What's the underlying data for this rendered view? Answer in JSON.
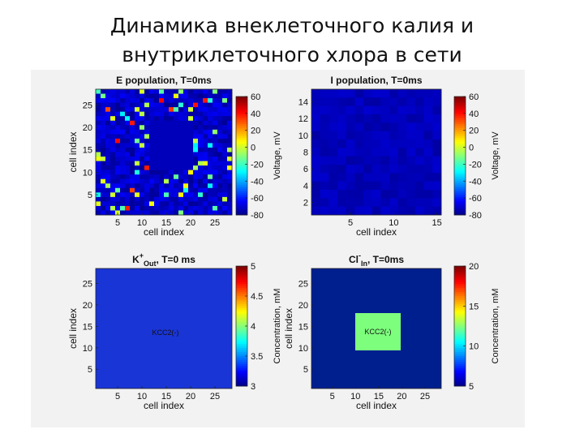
{
  "slide": {
    "title_line1": "Динамика внеклеточного калия и",
    "title_line2": "внутриклеточного хлора в сети"
  },
  "chart_data": [
    {
      "type": "heatmap",
      "title": "E population, T=0ms",
      "xlabel": "cell index",
      "ylabel": "cell index",
      "xticks": [
        5,
        10,
        15,
        20,
        25
      ],
      "yticks": [
        5,
        10,
        15,
        20,
        25
      ],
      "grid_size": [
        28,
        28
      ],
      "colorbar": {
        "label": "Voltage, mV",
        "range": [
          -80,
          60
        ],
        "ticks": [
          60,
          40,
          20,
          0,
          -20,
          -40,
          -60,
          -80
        ]
      },
      "background_value": -70,
      "colors": {
        "background": "#1f2fd0"
      }
    },
    {
      "type": "heatmap",
      "title": "I population, T=0ms",
      "xlabel": "cell index",
      "ylabel": "",
      "xticks": [
        5,
        10,
        15
      ],
      "yticks": [
        2,
        4,
        6,
        8,
        10,
        12,
        14
      ],
      "grid_size": [
        15,
        15
      ],
      "colorbar": {
        "label": "Voltage, mV",
        "range": [
          -80,
          60
        ],
        "ticks": [
          60,
          40,
          20,
          0,
          -20,
          -40,
          -60,
          -80
        ]
      },
      "background_value": -72,
      "colors": {
        "background": "#1a28cc"
      }
    },
    {
      "type": "heatmap",
      "title_main": "K",
      "title_sup": "+",
      "title_sub": "Out",
      "title_rest": ", T=0 ms",
      "xlabel": "cell index",
      "ylabel": "cell index",
      "xticks": [
        5,
        10,
        15,
        20,
        25
      ],
      "yticks": [
        5,
        10,
        15,
        20,
        25
      ],
      "grid_size": [
        28,
        28
      ],
      "colorbar": {
        "label": "Concentration, mM",
        "range": [
          3,
          5
        ],
        "ticks": [
          5,
          4.5,
          4,
          3.5,
          3
        ]
      },
      "uniform_value": 3.2,
      "annotation": "KCC2(-)",
      "colors": {
        "background": "#1a35d6"
      }
    },
    {
      "type": "heatmap",
      "title_main": "Cl",
      "title_sup": "-",
      "title_sub": "In",
      "title_rest": ", T=0ms",
      "xlabel": "cell index",
      "ylabel": "cell index",
      "xticks": [
        5,
        10,
        15,
        20,
        25
      ],
      "yticks": [
        5,
        10,
        15,
        20,
        25
      ],
      "grid_size": [
        28,
        28
      ],
      "colorbar": {
        "label": "Concentration, mM",
        "range": [
          5,
          20
        ],
        "ticks": [
          20,
          15,
          10,
          5
        ]
      },
      "uniform_value": 5,
      "annotation": "KCC2(-)",
      "colors": {
        "background": "#001f8f",
        "annotation_box": "#7dff7d"
      }
    }
  ]
}
